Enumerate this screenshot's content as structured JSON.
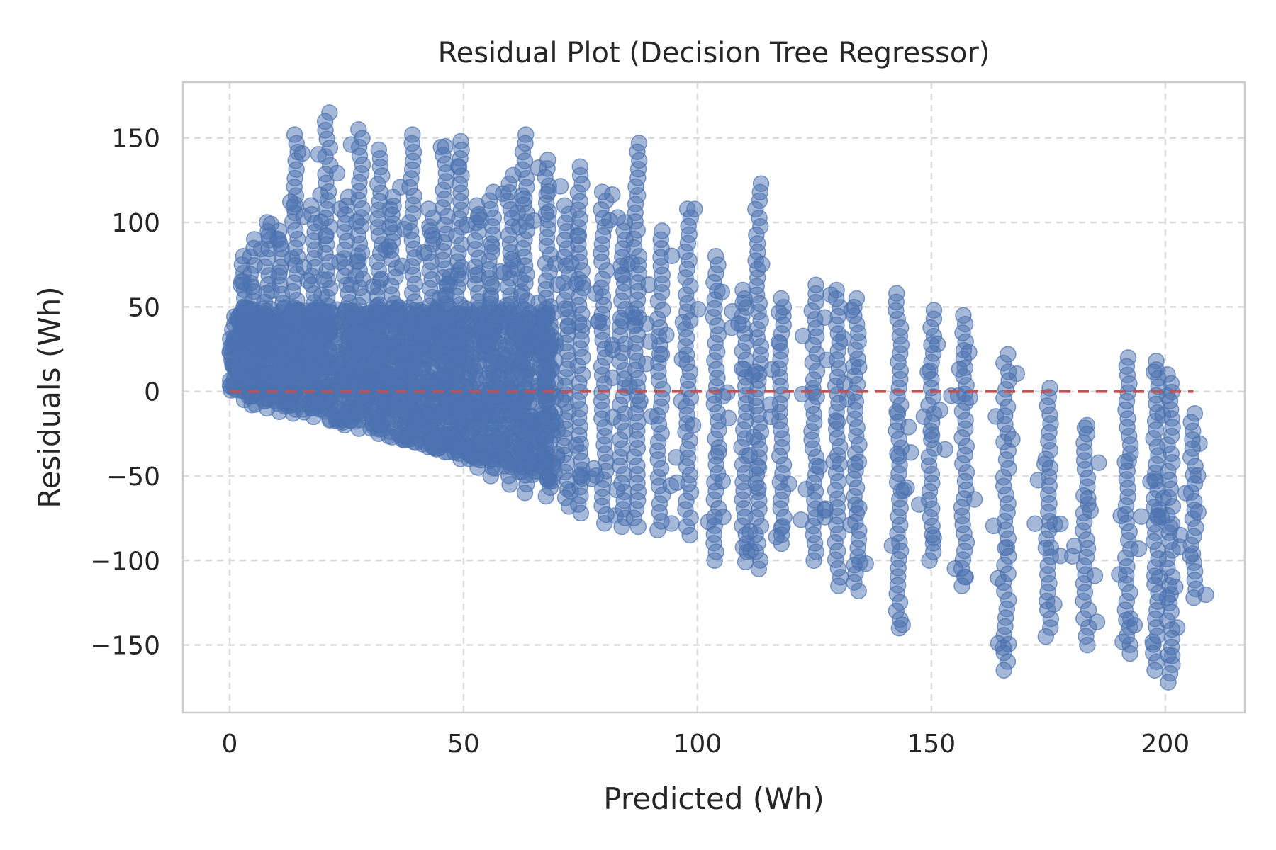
{
  "chart_data": {
    "type": "scatter",
    "title": "Residual Plot (Decision Tree Regressor)",
    "xlabel": "Predicted (Wh)",
    "ylabel": "Residuals (Wh)",
    "xlim": [
      -10,
      217
    ],
    "ylim": [
      -190,
      183
    ],
    "xticks": [
      0,
      50,
      100,
      150,
      200
    ],
    "yticks": [
      150,
      100,
      50,
      0,
      -50,
      -100,
      -150
    ],
    "xtick_labels": [
      "0",
      "50",
      "100",
      "150",
      "200"
    ],
    "ytick_labels": [
      "150",
      "100",
      "50",
      "0",
      "−50",
      "−100",
      "−150"
    ],
    "grid": true,
    "reference_line": {
      "y": 0,
      "x_range": [
        0,
        206
      ],
      "style": "dashed",
      "color": "#c44e52"
    },
    "point_color": "#4c72b0",
    "point_alpha": 0.5,
    "vertical_clusters": [
      {
        "x": 3,
        "ymin": -5,
        "ymax": 80
      },
      {
        "x": 5,
        "ymin": -8,
        "ymax": 90
      },
      {
        "x": 8,
        "ymin": -10,
        "ymax": 100
      },
      {
        "x": 11,
        "ymin": -12,
        "ymax": 95
      },
      {
        "x": 14,
        "ymin": -13,
        "ymax": 152
      },
      {
        "x": 18,
        "ymin": -15,
        "ymax": 110
      },
      {
        "x": 21,
        "ymin": -17,
        "ymax": 165
      },
      {
        "x": 25,
        "ymin": -20,
        "ymax": 115
      },
      {
        "x": 28,
        "ymin": -22,
        "ymax": 155
      },
      {
        "x": 32,
        "ymin": -25,
        "ymax": 143
      },
      {
        "x": 35,
        "ymin": -27,
        "ymax": 115
      },
      {
        "x": 39,
        "ymin": -30,
        "ymax": 152
      },
      {
        "x": 43,
        "ymin": -33,
        "ymax": 108
      },
      {
        "x": 46,
        "ymin": -36,
        "ymax": 145
      },
      {
        "x": 49,
        "ymin": -40,
        "ymax": 148
      },
      {
        "x": 53,
        "ymin": -45,
        "ymax": 110
      },
      {
        "x": 56,
        "ymin": -50,
        "ymax": 118
      },
      {
        "x": 60,
        "ymin": -55,
        "ymax": 128
      },
      {
        "x": 63,
        "ymin": -60,
        "ymax": 152
      },
      {
        "x": 68,
        "ymin": -62,
        "ymax": 137
      },
      {
        "x": 72,
        "ymin": -68,
        "ymax": 110
      },
      {
        "x": 75,
        "ymin": -72,
        "ymax": 133
      },
      {
        "x": 80,
        "ymin": -78,
        "ymax": 118
      },
      {
        "x": 84,
        "ymin": -80,
        "ymax": 100
      },
      {
        "x": 87,
        "ymin": -80,
        "ymax": 147
      },
      {
        "x": 92,
        "ymin": -82,
        "ymax": 95
      },
      {
        "x": 98,
        "ymin": -85,
        "ymax": 108
      },
      {
        "x": 104,
        "ymin": -100,
        "ymax": 80
      },
      {
        "x": 110,
        "ymin": -95,
        "ymax": 60
      },
      {
        "x": 113,
        "ymin": -105,
        "ymax": 123
      },
      {
        "x": 118,
        "ymin": -90,
        "ymax": 55
      },
      {
        "x": 125,
        "ymin": -100,
        "ymax": 63
      },
      {
        "x": 130,
        "ymin": -115,
        "ymax": 60
      },
      {
        "x": 134,
        "ymin": -118,
        "ymax": 55
      },
      {
        "x": 143,
        "ymin": -140,
        "ymax": 58
      },
      {
        "x": 150,
        "ymin": -100,
        "ymax": 48
      },
      {
        "x": 157,
        "ymin": -115,
        "ymax": 45
      },
      {
        "x": 166,
        "ymin": -165,
        "ymax": 22
      },
      {
        "x": 175,
        "ymin": -145,
        "ymax": 2
      },
      {
        "x": 183,
        "ymin": -150,
        "ymax": -20
      },
      {
        "x": 192,
        "ymin": -155,
        "ymax": 20
      },
      {
        "x": 198,
        "ymin": -165,
        "ymax": 18
      },
      {
        "x": 201,
        "ymin": -172,
        "ymax": 10
      },
      {
        "x": 206,
        "ymin": -122,
        "ymax": -13
      }
    ]
  }
}
